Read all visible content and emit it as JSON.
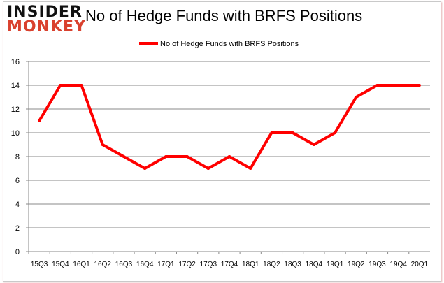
{
  "logo": {
    "line1": "INSIDER",
    "line2": "MONKEY"
  },
  "chart_data": {
    "type": "line",
    "title": "No of Hedge Funds with BRFS Positions",
    "categories": [
      "15Q3",
      "15Q4",
      "16Q1",
      "16Q2",
      "16Q3",
      "16Q4",
      "17Q1",
      "17Q2",
      "17Q3",
      "17Q4",
      "18Q1",
      "18Q2",
      "18Q3",
      "18Q4",
      "19Q1",
      "19Q2",
      "19Q3",
      "19Q4",
      "20Q1"
    ],
    "series": [
      {
        "name": "No of Hedge Funds with BRFS Positions",
        "color": "#ff0000",
        "values": [
          11,
          14,
          14,
          9,
          8,
          7,
          8,
          8,
          7,
          8,
          7,
          10,
          10,
          9,
          10,
          13,
          14,
          14,
          14
        ]
      }
    ],
    "ylim": [
      0,
      16
    ],
    "yticks": [
      0,
      2,
      4,
      6,
      8,
      10,
      12,
      14,
      16
    ],
    "grid": true,
    "legend": "top-center"
  }
}
